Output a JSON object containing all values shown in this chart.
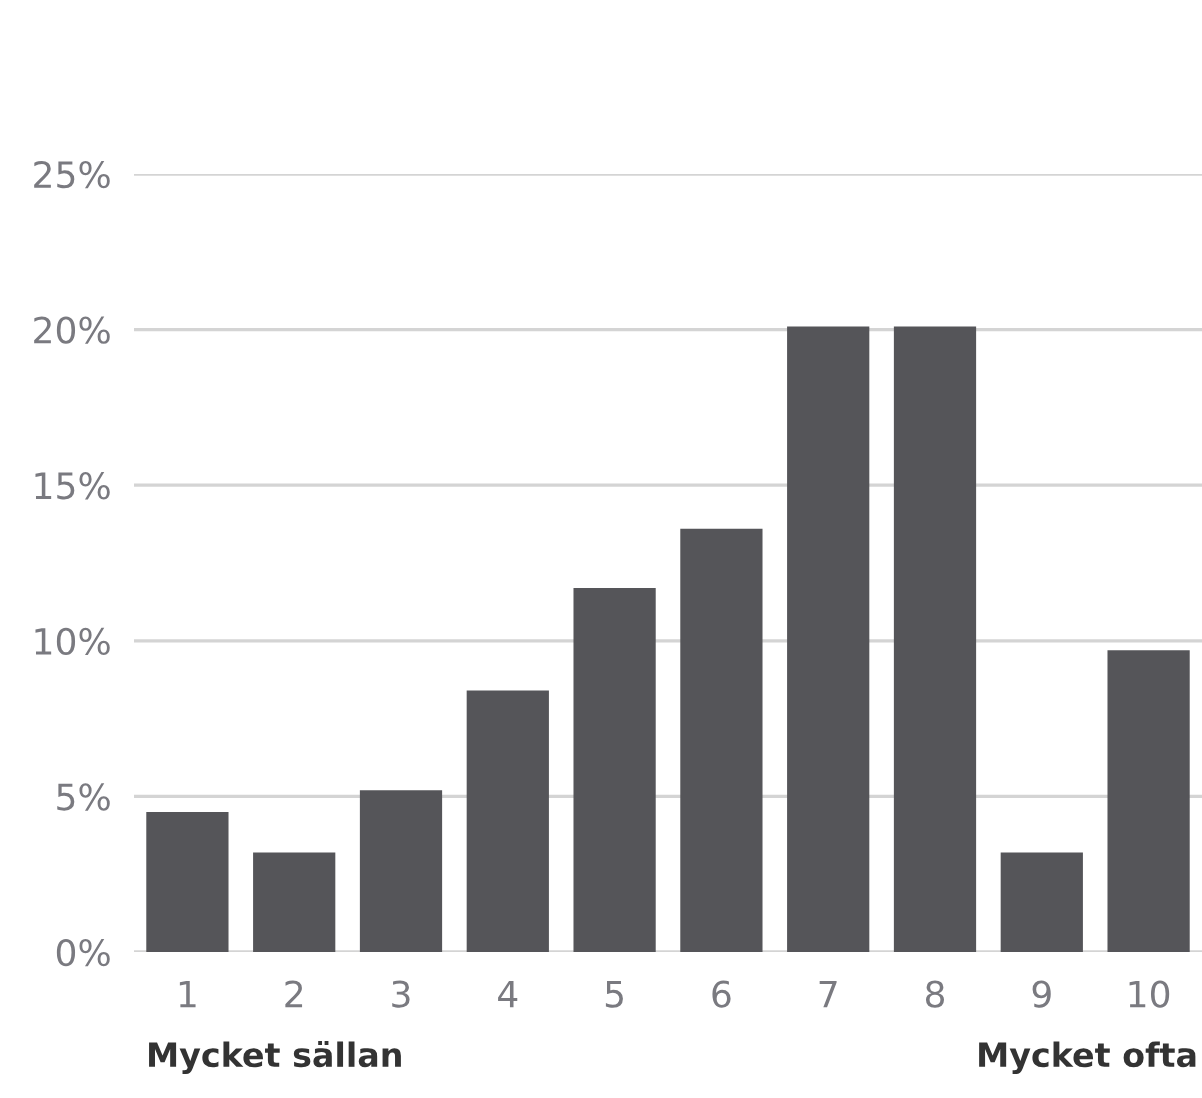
{
  "chart_data": {
    "type": "bar",
    "categories": [
      "1",
      "2",
      "3",
      "4",
      "5",
      "6",
      "7",
      "8",
      "9",
      "10"
    ],
    "values": [
      4.5,
      3.2,
      5.2,
      8.4,
      11.7,
      13.6,
      20.1,
      20.1,
      3.2,
      9.7
    ],
    "color": "#555559",
    "ylim": [
      0,
      25
    ],
    "yticks": [
      {
        "value": 0,
        "label": "0%"
      },
      {
        "value": 5,
        "label": "5%"
      },
      {
        "value": 10,
        "label": "10%"
      },
      {
        "value": 15,
        "label": "15%"
      },
      {
        "value": 20,
        "label": "20%"
      },
      {
        "value": 25,
        "label": "25%"
      }
    ],
    "grid": "y",
    "annotations": [
      "Mycket sällan",
      "Mycket ofta"
    ]
  }
}
